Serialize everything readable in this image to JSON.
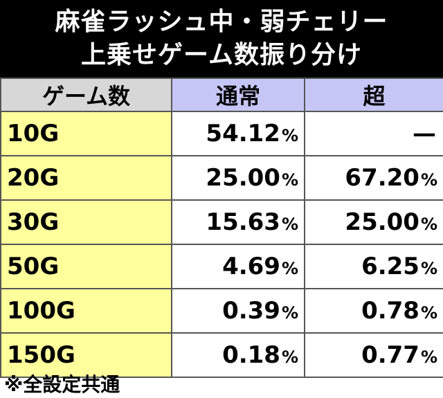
{
  "title": {
    "line1": "麻雀ラッシュ中・弱チェリー",
    "line2": "上乗せゲーム数振り分け"
  },
  "table": {
    "headers": [
      "ゲーム数",
      "通常",
      "超"
    ],
    "rows": [
      {
        "game": "10G",
        "normal": "54.12",
        "normal_unit": "%",
        "super": "—",
        "super_unit": ""
      },
      {
        "game": "20G",
        "normal": "25.00",
        "normal_unit": "%",
        "super": "67.20",
        "super_unit": "%"
      },
      {
        "game": "30G",
        "normal": "15.63",
        "normal_unit": "%",
        "super": "25.00",
        "super_unit": "%"
      },
      {
        "game": "50G",
        "normal": "4.69",
        "normal_unit": "%",
        "super": "6.25",
        "super_unit": "%"
      },
      {
        "game": "100G",
        "normal": "0.39",
        "normal_unit": "%",
        "super": "0.78",
        "super_unit": "%"
      },
      {
        "game": "150G",
        "normal": "0.18",
        "normal_unit": "%",
        "super": "0.77",
        "super_unit": "%"
      }
    ]
  },
  "note": "※全設定共通",
  "colors": {
    "title_bg": "#000000",
    "header_game_bg": "#d7d7d7",
    "header_mode_bg": "#c6c6f6",
    "game_cell_bg": "#ffff9c"
  }
}
